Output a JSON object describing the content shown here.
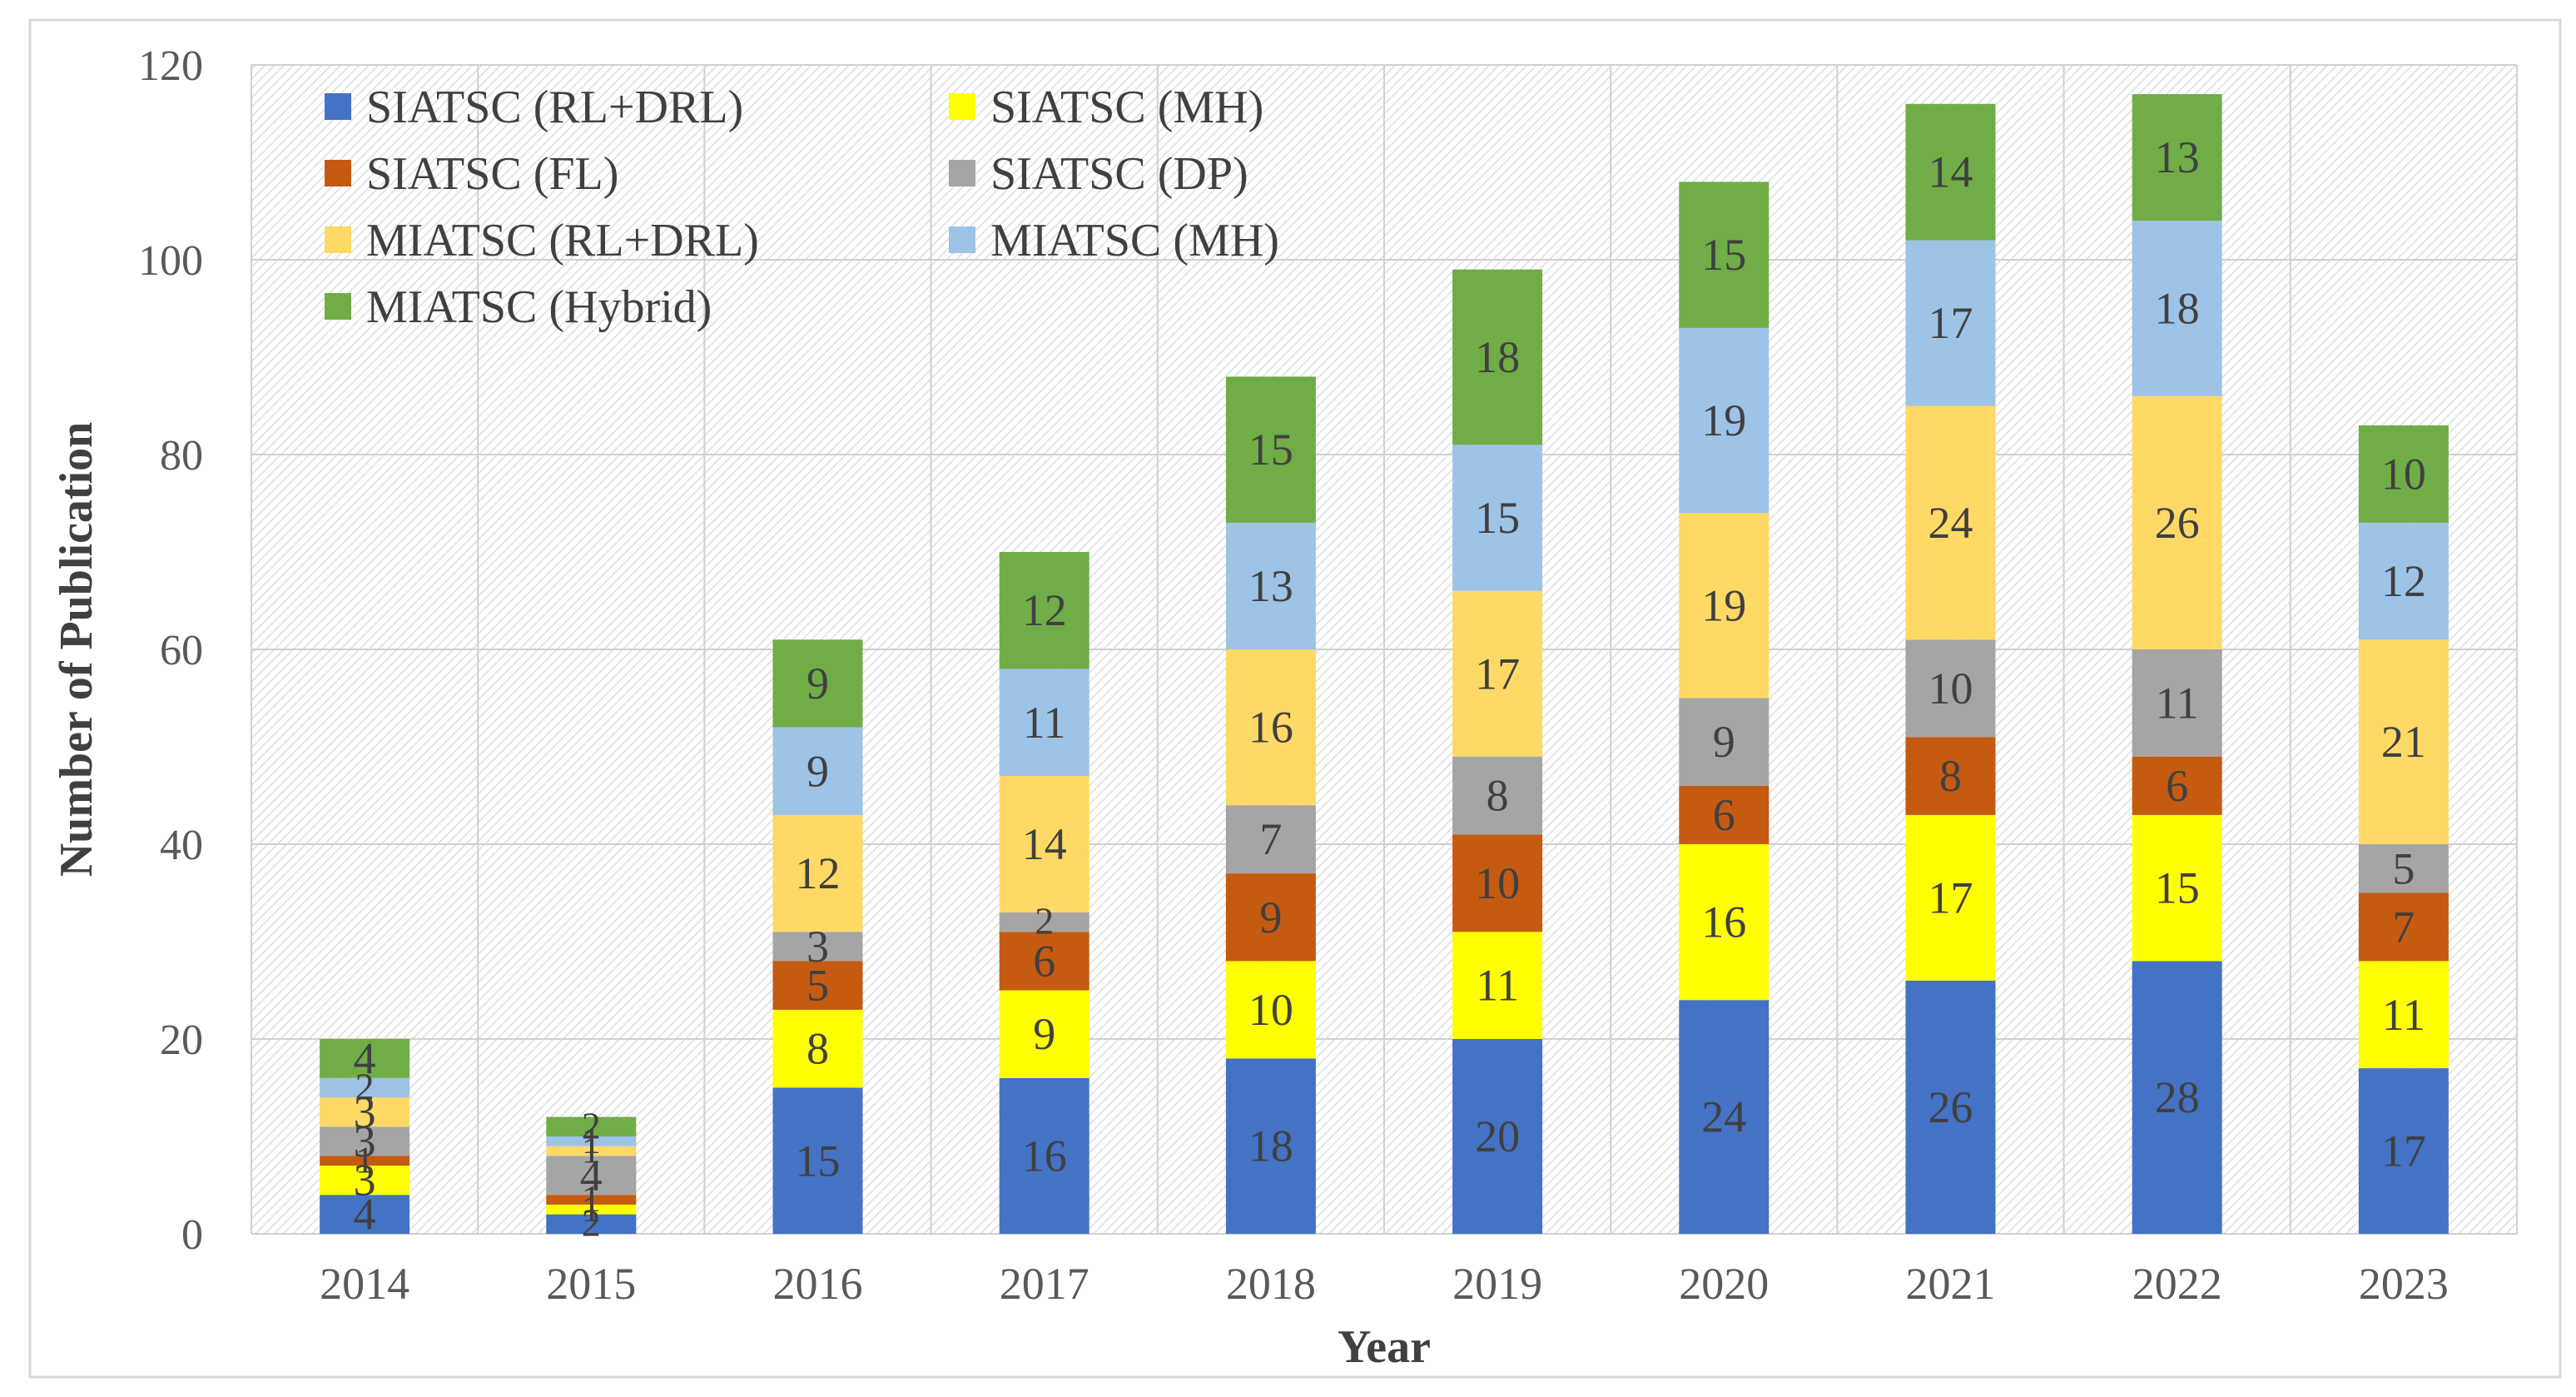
{
  "chart_data": {
    "type": "stacked_bar",
    "title": "",
    "xlabel": "Year",
    "ylabel": "Number of Publication",
    "ylim": [
      0,
      120
    ],
    "yticks": [
      0,
      20,
      40,
      60,
      80,
      100,
      120
    ],
    "grid": true,
    "legend_position": "top-left",
    "categories": [
      "2014",
      "2015",
      "2016",
      "2017",
      "2018",
      "2019",
      "2020",
      "2021",
      "2022",
      "2023"
    ],
    "series": [
      {
        "name": "SIATSC (RL+DRL)",
        "color": "#4472C4",
        "values": [
          4,
          2,
          15,
          16,
          18,
          20,
          24,
          26,
          28,
          17
        ]
      },
      {
        "name": "SIATSC (MH)",
        "color": "#FFFF00",
        "values": [
          3,
          1,
          8,
          9,
          10,
          11,
          16,
          17,
          15,
          11
        ]
      },
      {
        "name": "SIATSC (FL)",
        "color": "#C55A11",
        "values": [
          1,
          1,
          5,
          6,
          9,
          10,
          6,
          8,
          6,
          7
        ]
      },
      {
        "name": "SIATSC (DP)",
        "color": "#A5A5A5",
        "values": [
          3,
          4,
          3,
          2,
          7,
          8,
          9,
          10,
          11,
          5
        ]
      },
      {
        "name": "MIATSC (RL+DRL)",
        "color": "#FFD966",
        "values": [
          3,
          1,
          12,
          14,
          16,
          17,
          19,
          24,
          26,
          21
        ]
      },
      {
        "name": "MIATSC (MH)",
        "color": "#9DC3E6",
        "values": [
          2,
          1,
          9,
          11,
          13,
          15,
          19,
          17,
          18,
          12
        ]
      },
      {
        "name": "MIATSC (Hybrid)",
        "color": "#70AD47",
        "values": [
          4,
          2,
          9,
          12,
          15,
          18,
          15,
          14,
          13,
          10
        ]
      }
    ]
  }
}
